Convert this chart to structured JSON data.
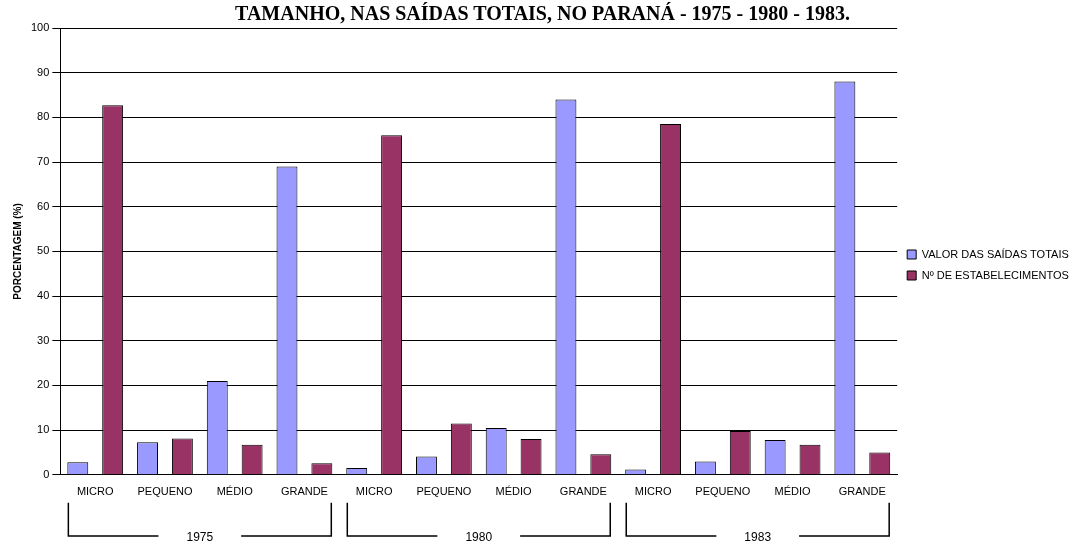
{
  "chart_data": {
    "type": "bar",
    "title": "TAMANHO, NAS SAÍDAS TOTAIS, NO PARANÁ - 1975 - 1980 - 1983.",
    "ylabel": "PORCENTAGEM (%)",
    "categories": [
      "MICRO",
      "PEQUENO",
      "MÉDIO",
      "GRANDE",
      "MICRO",
      "PEQUENO",
      "MÉDIO",
      "GRANDE",
      "MICRO",
      "PEQUENO",
      "MÉDIO",
      "GRANDE"
    ],
    "series": [
      {
        "name": "VALOR DAS SAÍDAS TOTAIS",
        "color": "#9999ff",
        "values": [
          2.8,
          7.3,
          21,
          69,
          1.5,
          4.1,
          10.5,
          84,
          1.2,
          3,
          7.8,
          88
        ]
      },
      {
        "name": "Nº DE ESTABELECIMENTOS",
        "color": "#993366",
        "values": [
          82.7,
          8.1,
          6.7,
          2.6,
          76,
          11.5,
          8,
          4.6,
          78.5,
          9.8,
          6.7,
          5
        ]
      }
    ],
    "ylim": [
      0,
      100
    ],
    "yticks": [
      0,
      10,
      20,
      30,
      40,
      50,
      60,
      70,
      80,
      90,
      100
    ],
    "grid": "y",
    "legend": "right",
    "annotations": [
      "1975",
      "1980",
      "1983"
    ]
  }
}
